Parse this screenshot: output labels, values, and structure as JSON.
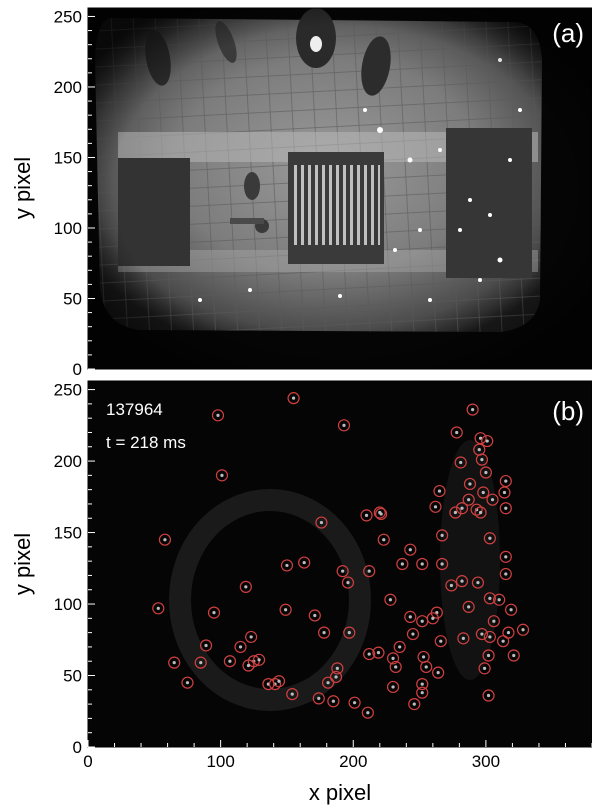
{
  "figure": {
    "panels": [
      {
        "id": "a",
        "panel_label": "(a)",
        "ylabel": "y pixel",
        "xlim": [
          0,
          380
        ],
        "ylim": [
          0,
          256
        ],
        "yticks": [
          0,
          50,
          100,
          150,
          200,
          250
        ]
      },
      {
        "id": "b",
        "panel_label": "(b)",
        "shot_label": "137964",
        "time_label": "t = 218 ms",
        "ylabel": "y pixel",
        "xlabel": "x pixel",
        "xlim": [
          0,
          380
        ],
        "ylim": [
          0,
          256
        ],
        "xticks": [
          0,
          100,
          200,
          300
        ],
        "yticks": [
          0,
          50,
          100,
          150,
          200,
          250
        ]
      }
    ],
    "colors": {
      "marker": "#d04040",
      "image_background": "#050505",
      "camera_field": "#7a7a7a"
    }
  },
  "chart_data": [
    {
      "type": "heatmap",
      "panel_label": "(a)",
      "ylabel": "y pixel",
      "xlim": [
        0,
        380
      ],
      "ylim": [
        0,
        256
      ]
    },
    {
      "type": "scatter",
      "panel_label": "(b)",
      "ylabel": "y pixel",
      "xlabel": "x pixel",
      "xlim": [
        0,
        380
      ],
      "ylim": [
        0,
        256
      ],
      "series": [
        {
          "points": [
            [
              155,
              244
            ],
            [
              98,
              232
            ],
            [
              290,
              236
            ],
            [
              193,
              225
            ],
            [
              278,
              220
            ],
            [
              296,
              216
            ],
            [
              301,
              214
            ],
            [
              295,
              208
            ],
            [
              281,
              199
            ],
            [
              297,
              201
            ],
            [
              300,
              192
            ],
            [
              101,
              190
            ],
            [
              315,
              186
            ],
            [
              288,
              184
            ],
            [
              314,
              178
            ],
            [
              265,
              179
            ],
            [
              298,
              178
            ],
            [
              305,
              173
            ],
            [
              287,
              173
            ],
            [
              277,
              164
            ],
            [
              282,
              167
            ],
            [
              293,
              166
            ],
            [
              262,
              168
            ],
            [
              315,
              167
            ],
            [
              296,
              164
            ],
            [
              210,
              162
            ],
            [
              220,
              164
            ],
            [
              221,
              163
            ],
            [
              176,
              157
            ],
            [
              58,
              145
            ],
            [
              223,
              145
            ],
            [
              243,
              138
            ],
            [
              267,
              148
            ],
            [
              303,
              146
            ],
            [
              237,
              128
            ],
            [
              267,
              128
            ],
            [
              315,
              133
            ],
            [
              163,
              129
            ],
            [
              150,
              127
            ],
            [
              252,
              128
            ],
            [
              192,
              123
            ],
            [
              212,
              123
            ],
            [
              315,
              121
            ],
            [
              282,
              116
            ],
            [
              294,
              115
            ],
            [
              274,
              113
            ],
            [
              119,
              112
            ],
            [
              196,
              115
            ],
            [
              303,
              104
            ],
            [
              228,
              103
            ],
            [
              263,
              94
            ],
            [
              310,
              103
            ],
            [
              319,
              96
            ],
            [
              53,
              97
            ],
            [
              95,
              94
            ],
            [
              149,
              96
            ],
            [
              171,
              92
            ],
            [
              243,
              91
            ],
            [
              260,
              90
            ],
            [
              252,
              88
            ],
            [
              306,
              88
            ],
            [
              287,
              98
            ],
            [
              328,
              82
            ],
            [
              317,
              80
            ],
            [
              197,
              80
            ],
            [
              178,
              80
            ],
            [
              245,
              79
            ],
            [
              297,
              79
            ],
            [
              303,
              77
            ],
            [
              123,
              77
            ],
            [
              283,
              76
            ],
            [
              266,
              74
            ],
            [
              313,
              74
            ],
            [
              89,
              71
            ],
            [
              115,
              70
            ],
            [
              235,
              70
            ],
            [
              219,
              66
            ],
            [
              212,
              65
            ],
            [
              230,
              62
            ],
            [
              253,
              63
            ],
            [
              302,
              64
            ],
            [
              321,
              64
            ],
            [
              107,
              60
            ],
            [
              125,
              60
            ],
            [
              129,
              61
            ],
            [
              65,
              59
            ],
            [
              85,
              59
            ],
            [
              121,
              57
            ],
            [
              188,
              55
            ],
            [
              232,
              56
            ],
            [
              255,
              56
            ],
            [
              299,
              55
            ],
            [
              187,
              49
            ],
            [
              264,
              52
            ],
            [
              75,
              45
            ],
            [
              136,
              44
            ],
            [
              141,
              44
            ],
            [
              144,
              46
            ],
            [
              181,
              45
            ],
            [
              252,
              44
            ],
            [
              230,
              42
            ],
            [
              154,
              37
            ],
            [
              174,
              34
            ],
            [
              252,
              38
            ],
            [
              302,
              36
            ],
            [
              185,
              32
            ],
            [
              201,
              31
            ],
            [
              246,
              30
            ],
            [
              211,
              24
            ]
          ]
        }
      ]
    }
  ]
}
